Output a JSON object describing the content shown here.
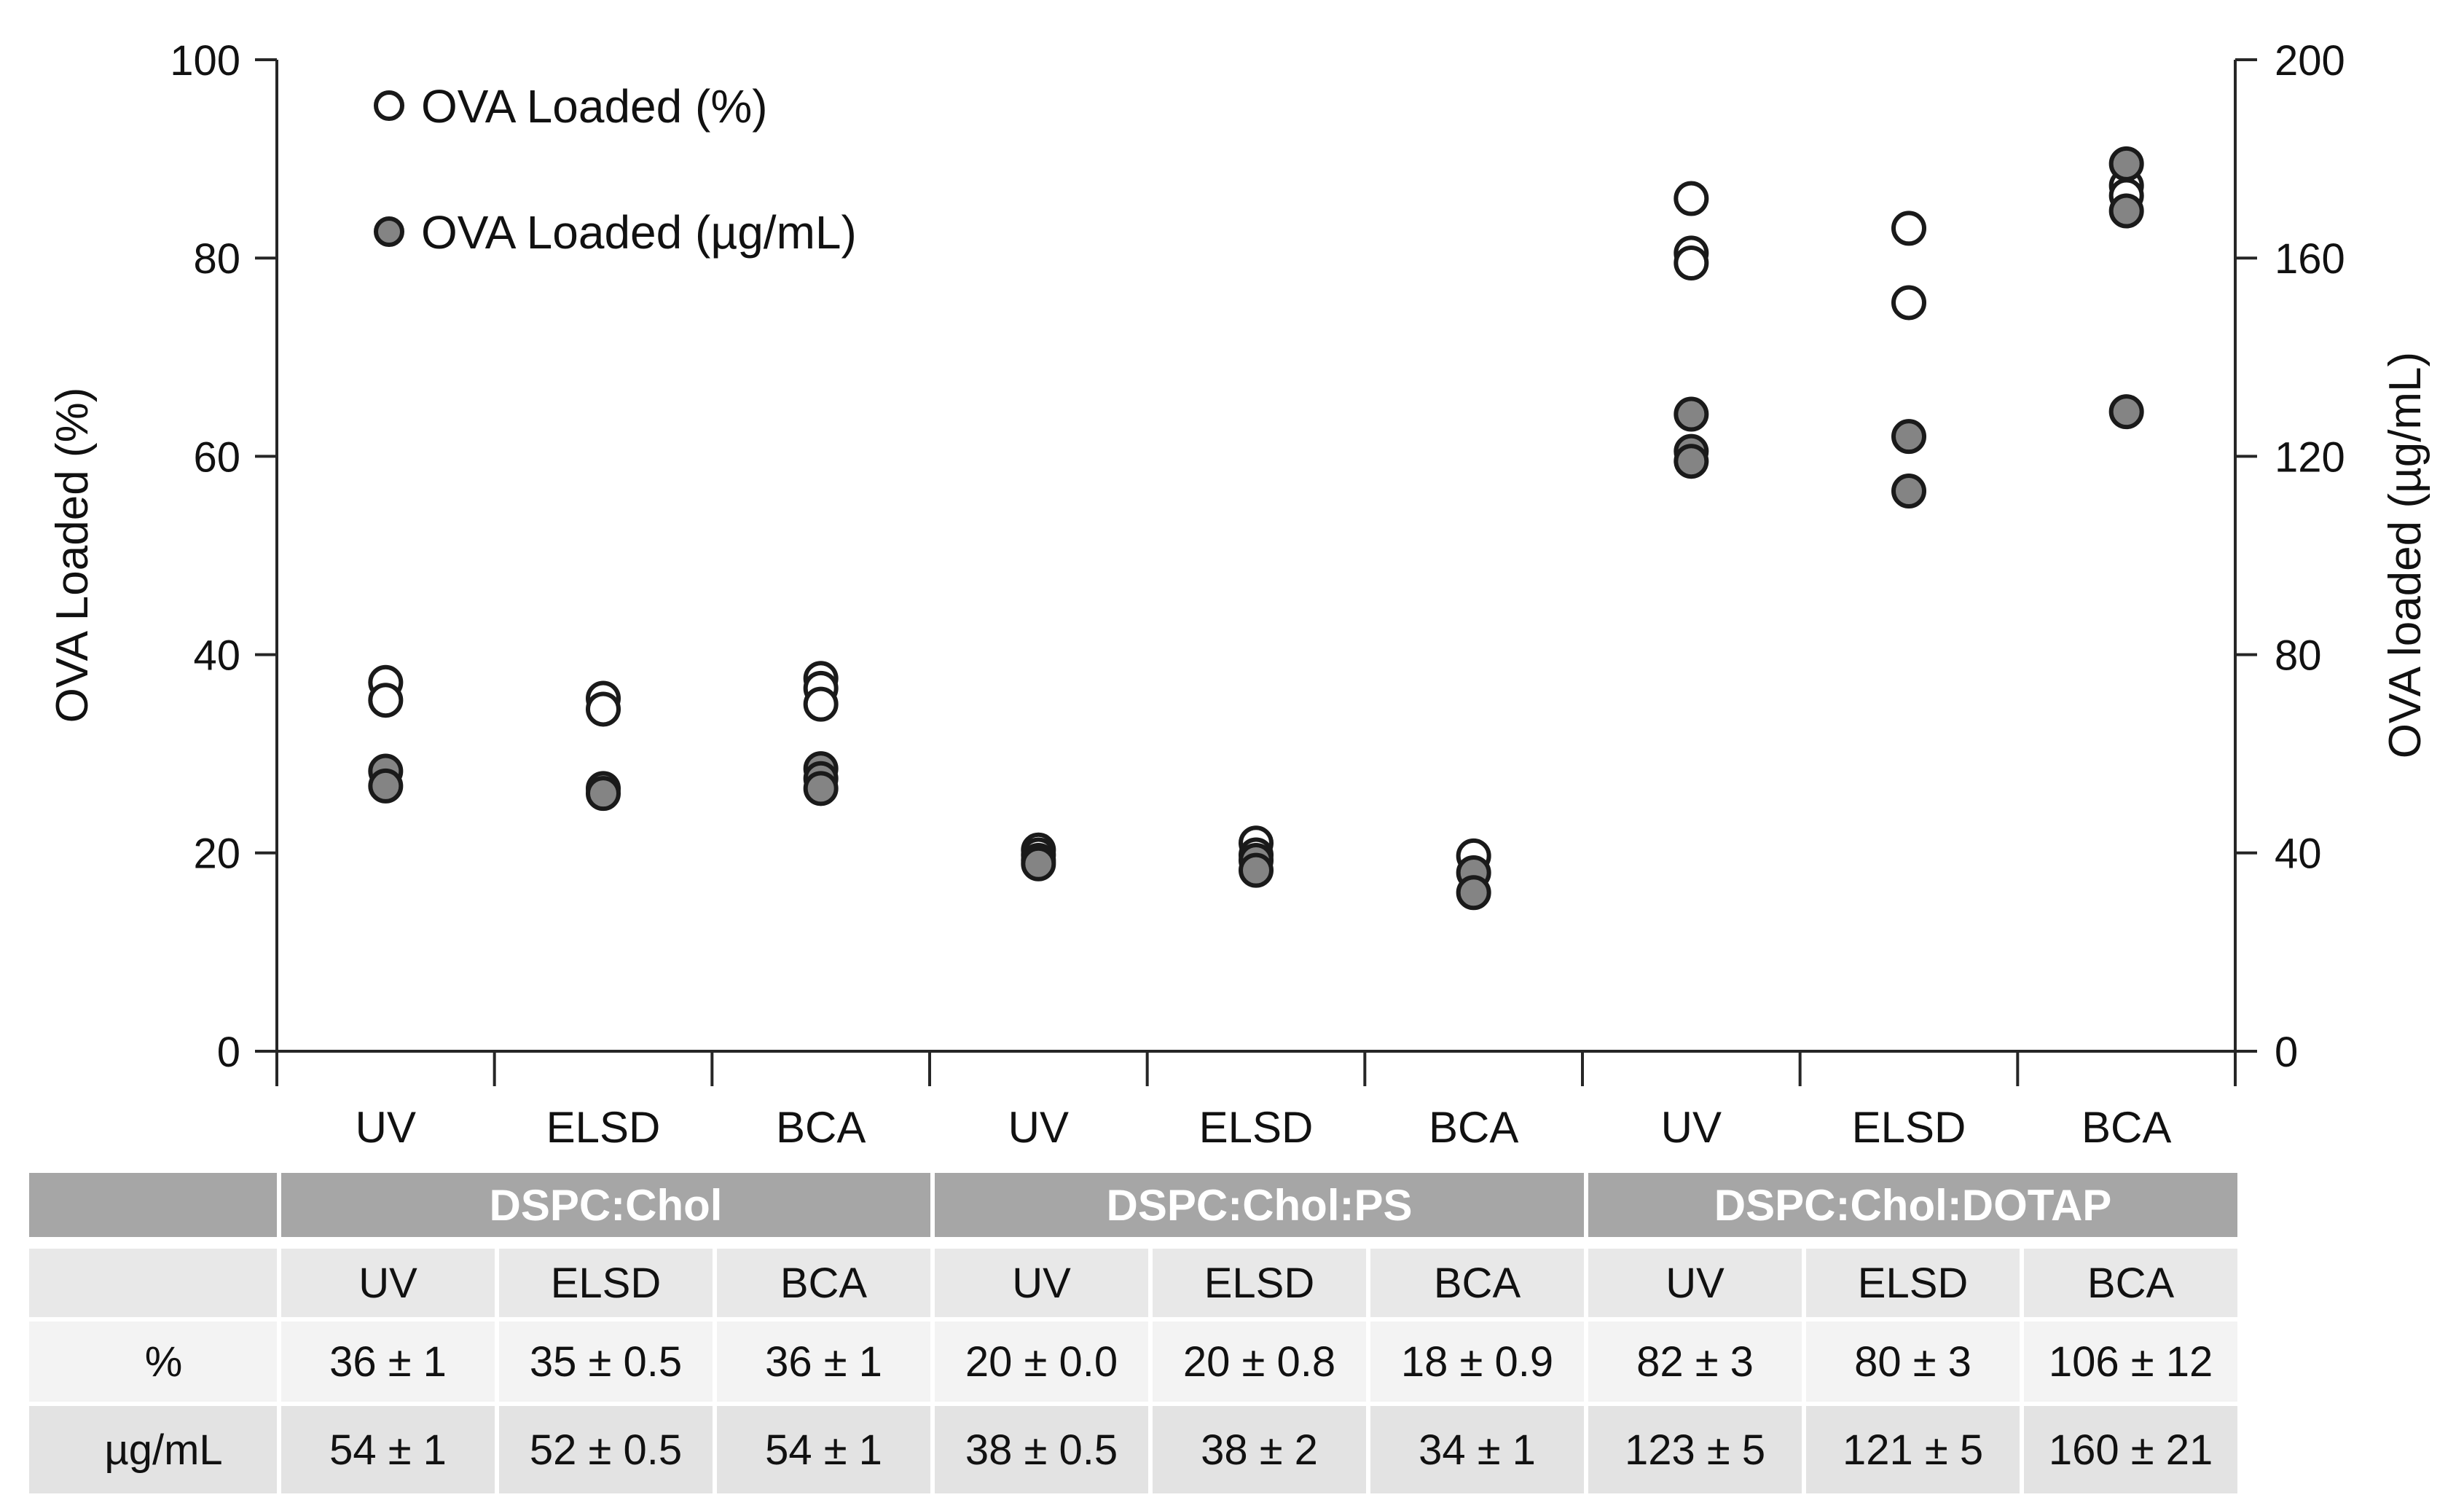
{
  "colors": {
    "point_fill_gray": "#848484",
    "point_open_fill": "#ffffff",
    "point_stroke": "#1a1a1a",
    "axis_line": "#262626",
    "table_header_bg": "#a6a6a6",
    "table_header_text": "#ffffff",
    "table_subheader_bg": "#e8e8e8",
    "table_pct_row_bg": "#f3f3f3",
    "table_ug_row_bg": "#e3e3e3"
  },
  "chart_data": {
    "type": "scatter",
    "legend": [
      {
        "label": "OVA Loaded (%)",
        "marker": "open"
      },
      {
        "label": "OVA Loaded (µg/mL)",
        "marker": "filled"
      }
    ],
    "left_axis": {
      "label": "OVA Loaded (%)",
      "min": 0,
      "max": 100,
      "ticks": [
        0,
        20,
        40,
        60,
        80,
        100
      ]
    },
    "right_axis": {
      "label": "OVA loaded (µg/mL)",
      "min": 0,
      "max": 200,
      "ticks": [
        0,
        40,
        80,
        120,
        160,
        200
      ]
    },
    "groups": [
      "DSPC:Chol",
      "DSPC:Chol:PS",
      "DSPC:Chol:DOTAP"
    ],
    "categories": [
      "UV",
      "ELSD",
      "BCA",
      "UV",
      "ELSD",
      "BCA",
      "UV",
      "ELSD",
      "BCA"
    ],
    "grid": false,
    "legend_position": "top-left-inside",
    "points": [
      {
        "group": "DSPC:Chol",
        "method": "UV",
        "pct": [
          37.2,
          35.4
        ],
        "ugml": [
          56.5,
          53.5
        ]
      },
      {
        "group": "DSPC:Chol",
        "method": "ELSD",
        "pct": [
          35.6,
          34.5
        ],
        "ugml": [
          53.0,
          52.0
        ]
      },
      {
        "group": "DSPC:Chol",
        "method": "BCA",
        "pct": [
          37.6,
          36.6,
          35.0
        ],
        "ugml": [
          57.0,
          55.0,
          53.0
        ]
      },
      {
        "group": "DSPC:Chol:PS",
        "method": "UV",
        "pct": [
          20.3,
          19.8
        ],
        "ugml": [
          38.5,
          37.8
        ]
      },
      {
        "group": "DSPC:Chol:PS",
        "method": "ELSD",
        "pct": [
          21.0,
          19.8
        ],
        "ugml": [
          38.5,
          36.5
        ]
      },
      {
        "group": "DSPC:Chol:PS",
        "method": "BCA",
        "pct": [
          19.7
        ],
        "ugml": [
          36.0,
          32.0
        ]
      },
      {
        "group": "DSPC:Chol:DOTAP",
        "method": "UV",
        "pct": [
          86.0,
          80.5,
          79.5
        ],
        "ugml": [
          128.5,
          121.0,
          119.0
        ]
      },
      {
        "group": "DSPC:Chol:DOTAP",
        "method": "ELSD",
        "pct": [
          83.0,
          75.5
        ],
        "ugml": [
          124.0,
          113.0
        ]
      },
      {
        "group": "DSPC:Chol:DOTAP",
        "method": "BCA",
        "pct": [
          87.3,
          86.3
        ],
        "ugml": [
          179.0,
          169.5,
          129.0
        ]
      }
    ]
  },
  "table": {
    "groups": [
      "DSPC:Chol",
      "DSPC:Chol:PS",
      "DSPC:Chol:DOTAP"
    ],
    "methods": [
      "UV",
      "ELSD",
      "BCA",
      "UV",
      "ELSD",
      "BCA",
      "UV",
      "ELSD",
      "BCA"
    ],
    "row_labels": [
      "%",
      "µg/mL"
    ],
    "pct_values": [
      "36 ± 1",
      "35 ± 0.5",
      "36 ± 1",
      "20 ± 0.0",
      "20 ± 0.8",
      "18 ± 0.9",
      "82 ± 3",
      "80 ± 3",
      "106 ± 12"
    ],
    "ugml_values": [
      "54 ± 1",
      "52 ± 0.5",
      "54 ± 1",
      "38 ± 0.5",
      "38 ± 2",
      "34 ± 1",
      "123 ± 5",
      "121 ± 5",
      "160 ± 21"
    ]
  }
}
